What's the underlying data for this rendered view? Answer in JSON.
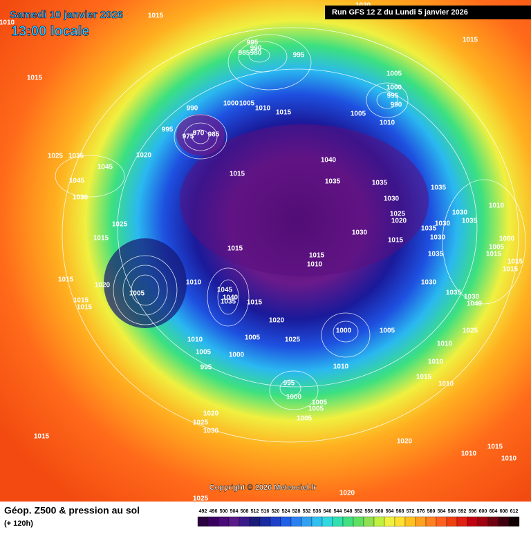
{
  "header": {
    "date": "Samedi 10 janvier 2026",
    "time": "13:00 locale",
    "run": "Run GFS 12 Z du Lundi 5 janvier 2026"
  },
  "copyright": "Copyright © 2026 Meteociel.fr",
  "footer": {
    "title": "Géop. Z500 & pression au sol",
    "lead": "(+ 120h)"
  },
  "scale": {
    "values": [
      492,
      496,
      500,
      504,
      508,
      512,
      516,
      520,
      524,
      528,
      532,
      536,
      540,
      544,
      548,
      552,
      556,
      560,
      564,
      568,
      572,
      576,
      580,
      584,
      588,
      592,
      596,
      600,
      604,
      608,
      612
    ]
  },
  "isobar_labels": [
    1015,
    1010,
    1020,
    1015,
    995,
    990,
    985,
    980,
    995,
    1015,
    1005,
    1000,
    995,
    990,
    990,
    1000,
    1005,
    1010,
    1015,
    1005,
    1010,
    995,
    975,
    970,
    985,
    1020,
    1025,
    1035,
    1040,
    1045,
    1015,
    1035,
    1035,
    1035,
    1045,
    1030,
    1030,
    1025,
    1020,
    1030,
    1035,
    1010,
    1025,
    1030,
    1035,
    1030,
    1030,
    1015,
    1015,
    1005,
    1000,
    1015,
    1015,
    1010,
    1035,
    1015,
    1015,
    1015,
    1015,
    1020,
    1010,
    1030,
    1035,
    1030,
    1040,
    1045,
    1040,
    1035,
    1005,
    1015,
    1015,
    1015,
    1020,
    1025,
    1000,
    1005,
    1025,
    1010,
    1005,
    1005,
    1000,
    1010,
    1010,
    1010,
    995,
    1015,
    1010,
    995,
    1000,
    1005,
    1005,
    1005,
    1020,
    1025,
    1030,
    1015,
    1020,
    1015,
    1010,
    1010,
    1025,
    1020
  ]
}
